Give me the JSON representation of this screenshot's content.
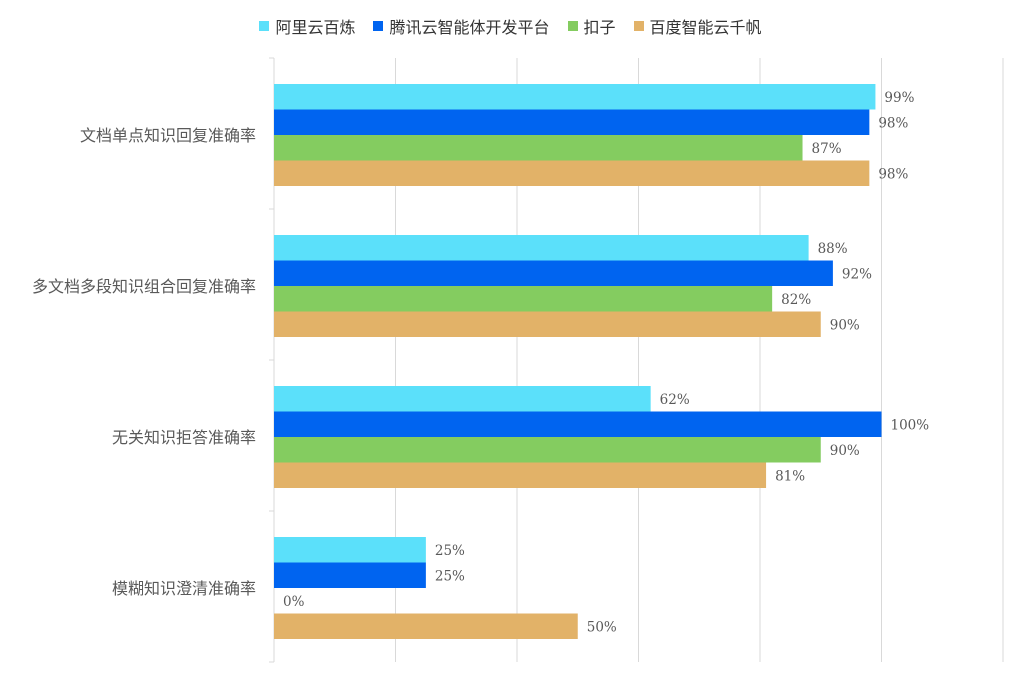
{
  "chart_data": {
    "type": "bar",
    "orientation": "horizontal",
    "categories": [
      "文档单点知识回复准确率",
      "多文档多段知识组合回复准确率",
      "无关知识拒答准确率",
      "模糊知识澄清准确率"
    ],
    "series": [
      {
        "name": "阿里云百炼",
        "color": "#5BE0FA",
        "values": [
          99,
          88,
          62,
          25
        ],
        "labels": [
          "99%",
          "88%",
          "62%",
          "25%"
        ]
      },
      {
        "name": "腾讯云智能体开发平台",
        "color": "#0064F0",
        "values": [
          98,
          92,
          100,
          25
        ],
        "labels": [
          "98%",
          "92%",
          "100%",
          "25%"
        ]
      },
      {
        "name": "扣子",
        "color": "#84CC60",
        "values": [
          87,
          82,
          90,
          0
        ],
        "labels": [
          "87%",
          "82%",
          "90%",
          "0%"
        ]
      },
      {
        "name": "百度智能云千帆",
        "color": "#E2B268",
        "values": [
          98,
          90,
          81,
          50
        ],
        "labels": [
          "98%",
          "90%",
          "81%",
          "50%"
        ]
      }
    ],
    "xlim": [
      0,
      120
    ],
    "x_gridlines": [
      0,
      20,
      40,
      60,
      80,
      100,
      120
    ],
    "grid": true,
    "legend_position": "top",
    "title": "",
    "xlabel": "",
    "ylabel": ""
  }
}
